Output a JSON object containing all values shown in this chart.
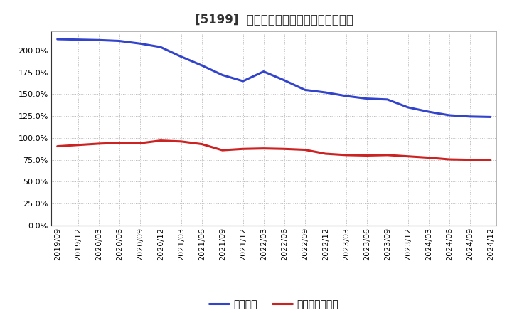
{
  "title": "[5199]  固定比率、固定長期適合率の推移",
  "series_order": [
    "固定比率",
    "固定長期適合率"
  ],
  "series": {
    "固定比率": {
      "color": "#3344cc",
      "values": [
        [
          "2019/09",
          213.0
        ],
        [
          "2019/12",
          212.5
        ],
        [
          "2020/03",
          212.0
        ],
        [
          "2020/06",
          211.0
        ],
        [
          "2020/09",
          208.0
        ],
        [
          "2020/12",
          204.0
        ],
        [
          "2021/03",
          193.0
        ],
        [
          "2021/06",
          183.0
        ],
        [
          "2021/09",
          172.0
        ],
        [
          "2021/12",
          165.0
        ],
        [
          "2022/03",
          176.0
        ],
        [
          "2022/06",
          166.0
        ],
        [
          "2022/09",
          155.0
        ],
        [
          "2022/12",
          152.0
        ],
        [
          "2023/03",
          148.0
        ],
        [
          "2023/06",
          145.0
        ],
        [
          "2023/09",
          144.0
        ],
        [
          "2023/12",
          135.0
        ],
        [
          "2024/03",
          130.0
        ],
        [
          "2024/06",
          126.0
        ],
        [
          "2024/09",
          124.5
        ],
        [
          "2024/12",
          124.0
        ]
      ]
    },
    "固定長期適合率": {
      "color": "#cc2222",
      "values": [
        [
          "2019/09",
          90.5
        ],
        [
          "2019/12",
          92.0
        ],
        [
          "2020/03",
          93.5
        ],
        [
          "2020/06",
          94.5
        ],
        [
          "2020/09",
          94.0
        ],
        [
          "2020/12",
          97.0
        ],
        [
          "2021/03",
          96.0
        ],
        [
          "2021/06",
          93.0
        ],
        [
          "2021/09",
          86.0
        ],
        [
          "2021/12",
          87.5
        ],
        [
          "2022/03",
          88.0
        ],
        [
          "2022/06",
          87.5
        ],
        [
          "2022/09",
          86.5
        ],
        [
          "2022/12",
          82.0
        ],
        [
          "2023/03",
          80.5
        ],
        [
          "2023/06",
          80.0
        ],
        [
          "2023/09",
          80.5
        ],
        [
          "2023/12",
          79.0
        ],
        [
          "2024/03",
          77.5
        ],
        [
          "2024/06",
          75.5
        ],
        [
          "2024/09",
          75.0
        ],
        [
          "2024/12",
          75.0
        ]
      ]
    }
  },
  "ylim": [
    0,
    222
  ],
  "yticks": [
    0,
    25,
    50,
    75,
    100,
    125,
    150,
    175,
    200
  ],
  "background_color": "#ffffff",
  "plot_bg_color": "#ffffff",
  "grid_color": "#bbbbbb",
  "title_fontsize": 12,
  "legend_fontsize": 10,
  "tick_fontsize": 8,
  "line_width": 2.2
}
